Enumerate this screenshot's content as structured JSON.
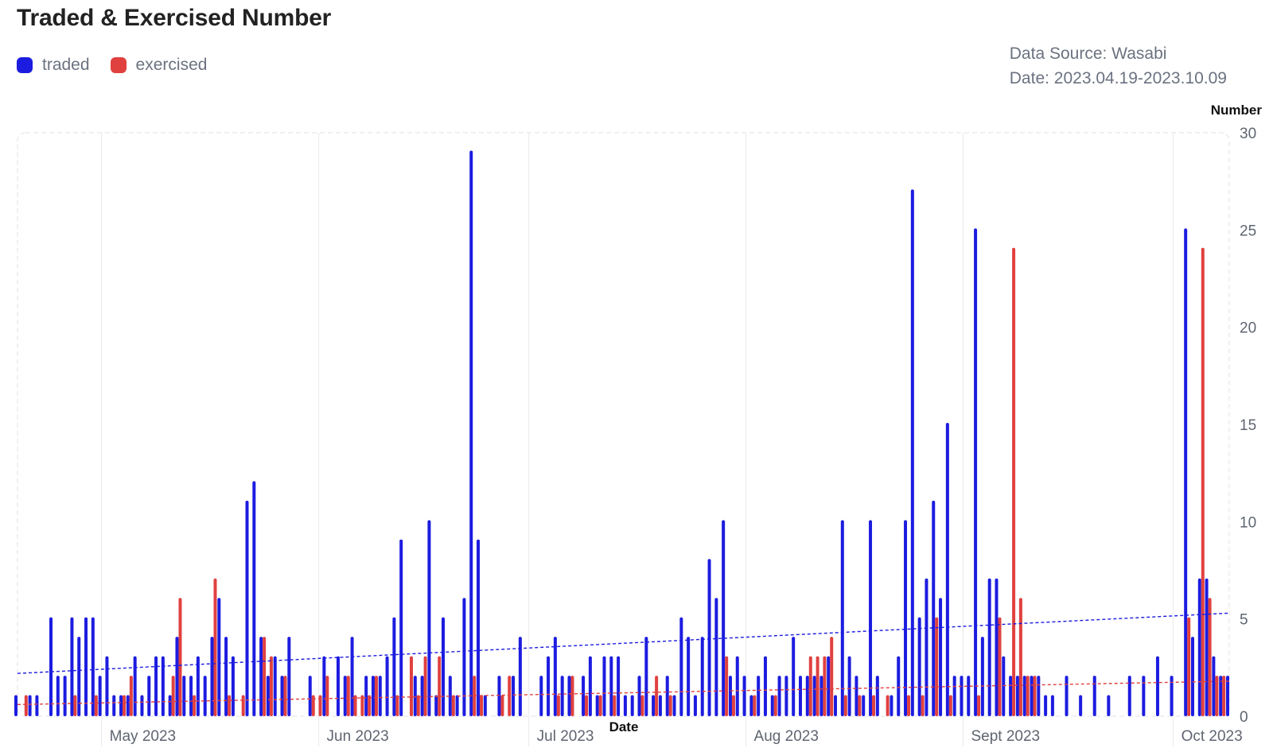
{
  "chart_data": {
    "type": "bar",
    "title": "Traded & Exercised Number",
    "source": "Data Source: Wasabi",
    "date_range": "Date: 2023.04.19-2023.10.09",
    "xlabel": "Date",
    "ylabel": "Number",
    "ylim": [
      0,
      30
    ],
    "yticks": [
      "0",
      "5",
      "10",
      "15",
      "20",
      "25",
      "30"
    ],
    "xlim": [
      "2023-04-19",
      "2023-10-09"
    ],
    "xticks": [
      {
        "date": "2023-05-01",
        "label": "May 2023"
      },
      {
        "date": "2023-06-01",
        "label": "Jun 2023"
      },
      {
        "date": "2023-07-01",
        "label": "Jul 2023"
      },
      {
        "date": "2023-08-01",
        "label": "Aug 2023"
      },
      {
        "date": "2023-09-01",
        "label": "Sept 2023"
      },
      {
        "date": "2023-10-01",
        "label": "Oct 2023"
      }
    ],
    "grid": false,
    "legend_position": "top-left",
    "colors": {
      "traded": "#1c1ce0",
      "exercised": "#e0413f"
    },
    "series": [
      {
        "name": "traded",
        "color": "#1c1ce0",
        "points": [
          [
            "2023-04-19",
            1
          ],
          [
            "2023-04-21",
            1
          ],
          [
            "2023-04-22",
            1
          ],
          [
            "2023-04-24",
            5
          ],
          [
            "2023-04-25",
            2
          ],
          [
            "2023-04-26",
            2
          ],
          [
            "2023-04-27",
            5
          ],
          [
            "2023-04-28",
            4
          ],
          [
            "2023-04-29",
            5
          ],
          [
            "2023-04-30",
            5
          ],
          [
            "2023-05-01",
            2
          ],
          [
            "2023-05-02",
            3
          ],
          [
            "2023-05-03",
            1
          ],
          [
            "2023-05-04",
            1
          ],
          [
            "2023-05-05",
            1
          ],
          [
            "2023-05-06",
            3
          ],
          [
            "2023-05-07",
            1
          ],
          [
            "2023-05-08",
            2
          ],
          [
            "2023-05-09",
            3
          ],
          [
            "2023-05-10",
            3
          ],
          [
            "2023-05-11",
            1
          ],
          [
            "2023-05-12",
            4
          ],
          [
            "2023-05-13",
            2
          ],
          [
            "2023-05-14",
            2
          ],
          [
            "2023-05-15",
            3
          ],
          [
            "2023-05-16",
            2
          ],
          [
            "2023-05-17",
            4
          ],
          [
            "2023-05-18",
            6
          ],
          [
            "2023-05-19",
            4
          ],
          [
            "2023-05-20",
            3
          ],
          [
            "2023-05-22",
            11
          ],
          [
            "2023-05-23",
            12
          ],
          [
            "2023-05-24",
            4
          ],
          [
            "2023-05-25",
            2
          ],
          [
            "2023-05-26",
            3
          ],
          [
            "2023-05-27",
            2
          ],
          [
            "2023-05-28",
            4
          ],
          [
            "2023-05-31",
            2
          ],
          [
            "2023-06-02",
            3
          ],
          [
            "2023-06-04",
            3
          ],
          [
            "2023-06-05",
            2
          ],
          [
            "2023-06-06",
            4
          ],
          [
            "2023-06-08",
            2
          ],
          [
            "2023-06-09",
            2
          ],
          [
            "2023-06-10",
            2
          ],
          [
            "2023-06-11",
            3
          ],
          [
            "2023-06-12",
            5
          ],
          [
            "2023-06-13",
            9
          ],
          [
            "2023-06-15",
            2
          ],
          [
            "2023-06-16",
            2
          ],
          [
            "2023-06-17",
            10
          ],
          [
            "2023-06-18",
            1
          ],
          [
            "2023-06-19",
            5
          ],
          [
            "2023-06-20",
            2
          ],
          [
            "2023-06-21",
            1
          ],
          [
            "2023-06-22",
            6
          ],
          [
            "2023-06-23",
            29
          ],
          [
            "2023-06-24",
            9
          ],
          [
            "2023-06-25",
            1
          ],
          [
            "2023-06-27",
            2
          ],
          [
            "2023-06-29",
            2
          ],
          [
            "2023-06-30",
            4
          ],
          [
            "2023-07-03",
            2
          ],
          [
            "2023-07-04",
            3
          ],
          [
            "2023-07-05",
            4
          ],
          [
            "2023-07-06",
            2
          ],
          [
            "2023-07-07",
            2
          ],
          [
            "2023-07-09",
            2
          ],
          [
            "2023-07-10",
            3
          ],
          [
            "2023-07-11",
            1
          ],
          [
            "2023-07-12",
            3
          ],
          [
            "2023-07-13",
            3
          ],
          [
            "2023-07-14",
            3
          ],
          [
            "2023-07-15",
            1
          ],
          [
            "2023-07-16",
            1
          ],
          [
            "2023-07-17",
            2
          ],
          [
            "2023-07-18",
            4
          ],
          [
            "2023-07-19",
            1
          ],
          [
            "2023-07-20",
            1
          ],
          [
            "2023-07-21",
            2
          ],
          [
            "2023-07-22",
            1
          ],
          [
            "2023-07-23",
            5
          ],
          [
            "2023-07-24",
            4
          ],
          [
            "2023-07-25",
            1
          ],
          [
            "2023-07-26",
            4
          ],
          [
            "2023-07-27",
            8
          ],
          [
            "2023-07-28",
            6
          ],
          [
            "2023-07-29",
            10
          ],
          [
            "2023-07-30",
            2
          ],
          [
            "2023-07-31",
            3
          ],
          [
            "2023-08-01",
            2
          ],
          [
            "2023-08-02",
            1
          ],
          [
            "2023-08-03",
            2
          ],
          [
            "2023-08-04",
            3
          ],
          [
            "2023-08-05",
            1
          ],
          [
            "2023-08-06",
            2
          ],
          [
            "2023-08-07",
            2
          ],
          [
            "2023-08-08",
            4
          ],
          [
            "2023-08-09",
            2
          ],
          [
            "2023-08-10",
            2
          ],
          [
            "2023-08-11",
            2
          ],
          [
            "2023-08-12",
            2
          ],
          [
            "2023-08-13",
            3
          ],
          [
            "2023-08-14",
            1
          ],
          [
            "2023-08-15",
            10
          ],
          [
            "2023-08-16",
            3
          ],
          [
            "2023-08-17",
            2
          ],
          [
            "2023-08-18",
            1
          ],
          [
            "2023-08-19",
            10
          ],
          [
            "2023-08-20",
            2
          ],
          [
            "2023-08-22",
            1
          ],
          [
            "2023-08-23",
            3
          ],
          [
            "2023-08-24",
            10
          ],
          [
            "2023-08-25",
            27
          ],
          [
            "2023-08-26",
            5
          ],
          [
            "2023-08-27",
            7
          ],
          [
            "2023-08-28",
            11
          ],
          [
            "2023-08-29",
            6
          ],
          [
            "2023-08-30",
            15
          ],
          [
            "2023-08-31",
            2
          ],
          [
            "2023-09-01",
            2
          ],
          [
            "2023-09-02",
            2
          ],
          [
            "2023-09-03",
            25
          ],
          [
            "2023-09-04",
            4
          ],
          [
            "2023-09-05",
            7
          ],
          [
            "2023-09-06",
            7
          ],
          [
            "2023-09-07",
            3
          ],
          [
            "2023-09-08",
            2
          ],
          [
            "2023-09-09",
            2
          ],
          [
            "2023-09-10",
            2
          ],
          [
            "2023-09-11",
            2
          ],
          [
            "2023-09-12",
            2
          ],
          [
            "2023-09-13",
            1
          ],
          [
            "2023-09-14",
            1
          ],
          [
            "2023-09-16",
            2
          ],
          [
            "2023-09-18",
            1
          ],
          [
            "2023-09-20",
            2
          ],
          [
            "2023-09-22",
            1
          ],
          [
            "2023-09-25",
            2
          ],
          [
            "2023-09-27",
            2
          ],
          [
            "2023-09-29",
            3
          ],
          [
            "2023-10-01",
            2
          ],
          [
            "2023-10-03",
            25
          ],
          [
            "2023-10-04",
            4
          ],
          [
            "2023-10-05",
            7
          ],
          [
            "2023-10-06",
            7
          ],
          [
            "2023-10-07",
            3
          ],
          [
            "2023-10-08",
            2
          ],
          [
            "2023-10-09",
            2
          ]
        ]
      },
      {
        "name": "exercised",
        "color": "#e0413f",
        "points": [
          [
            "2023-04-20",
            1
          ],
          [
            "2023-04-27",
            1
          ],
          [
            "2023-04-30",
            1
          ],
          [
            "2023-05-04",
            1
          ],
          [
            "2023-05-05",
            2
          ],
          [
            "2023-05-11",
            2
          ],
          [
            "2023-05-12",
            6
          ],
          [
            "2023-05-14",
            1
          ],
          [
            "2023-05-17",
            7
          ],
          [
            "2023-05-19",
            1
          ],
          [
            "2023-05-21",
            1
          ],
          [
            "2023-05-24",
            4
          ],
          [
            "2023-05-25",
            3
          ],
          [
            "2023-05-27",
            2
          ],
          [
            "2023-05-31",
            1
          ],
          [
            "2023-06-01",
            1
          ],
          [
            "2023-06-02",
            2
          ],
          [
            "2023-06-05",
            2
          ],
          [
            "2023-06-06",
            1
          ],
          [
            "2023-06-07",
            1
          ],
          [
            "2023-06-08",
            1
          ],
          [
            "2023-06-09",
            2
          ],
          [
            "2023-06-12",
            1
          ],
          [
            "2023-06-14",
            3
          ],
          [
            "2023-06-15",
            1
          ],
          [
            "2023-06-16",
            3
          ],
          [
            "2023-06-18",
            3
          ],
          [
            "2023-06-20",
            1
          ],
          [
            "2023-06-23",
            2
          ],
          [
            "2023-06-24",
            1
          ],
          [
            "2023-06-27",
            1
          ],
          [
            "2023-06-28",
            2
          ],
          [
            "2023-07-05",
            1
          ],
          [
            "2023-07-07",
            2
          ],
          [
            "2023-07-09",
            1
          ],
          [
            "2023-07-11",
            1
          ],
          [
            "2023-07-13",
            1
          ],
          [
            "2023-07-17",
            1
          ],
          [
            "2023-07-19",
            2
          ],
          [
            "2023-07-21",
            1
          ],
          [
            "2023-07-29",
            3
          ],
          [
            "2023-07-30",
            1
          ],
          [
            "2023-08-02",
            1
          ],
          [
            "2023-08-05",
            1
          ],
          [
            "2023-08-10",
            3
          ],
          [
            "2023-08-11",
            3
          ],
          [
            "2023-08-12",
            3
          ],
          [
            "2023-08-13",
            4
          ],
          [
            "2023-08-15",
            1
          ],
          [
            "2023-08-17",
            1
          ],
          [
            "2023-08-19",
            1
          ],
          [
            "2023-08-21",
            1
          ],
          [
            "2023-08-24",
            1
          ],
          [
            "2023-08-26",
            1
          ],
          [
            "2023-08-28",
            5
          ],
          [
            "2023-08-30",
            1
          ],
          [
            "2023-09-03",
            1
          ],
          [
            "2023-09-06",
            5
          ],
          [
            "2023-09-08",
            24
          ],
          [
            "2023-09-09",
            6
          ],
          [
            "2023-09-10",
            2
          ],
          [
            "2023-09-11",
            2
          ],
          [
            "2023-10-03",
            5
          ],
          [
            "2023-10-05",
            24
          ],
          [
            "2023-10-06",
            6
          ],
          [
            "2023-10-07",
            2
          ],
          [
            "2023-10-08",
            2
          ]
        ]
      }
    ],
    "trendlines": [
      {
        "series": "traded",
        "start": [
          "2023-04-19",
          2.2
        ],
        "end": [
          "2023-10-09",
          5.3
        ]
      },
      {
        "series": "exercised",
        "start": [
          "2023-04-19",
          0.6
        ],
        "end": [
          "2023-10-09",
          1.8
        ]
      }
    ]
  }
}
